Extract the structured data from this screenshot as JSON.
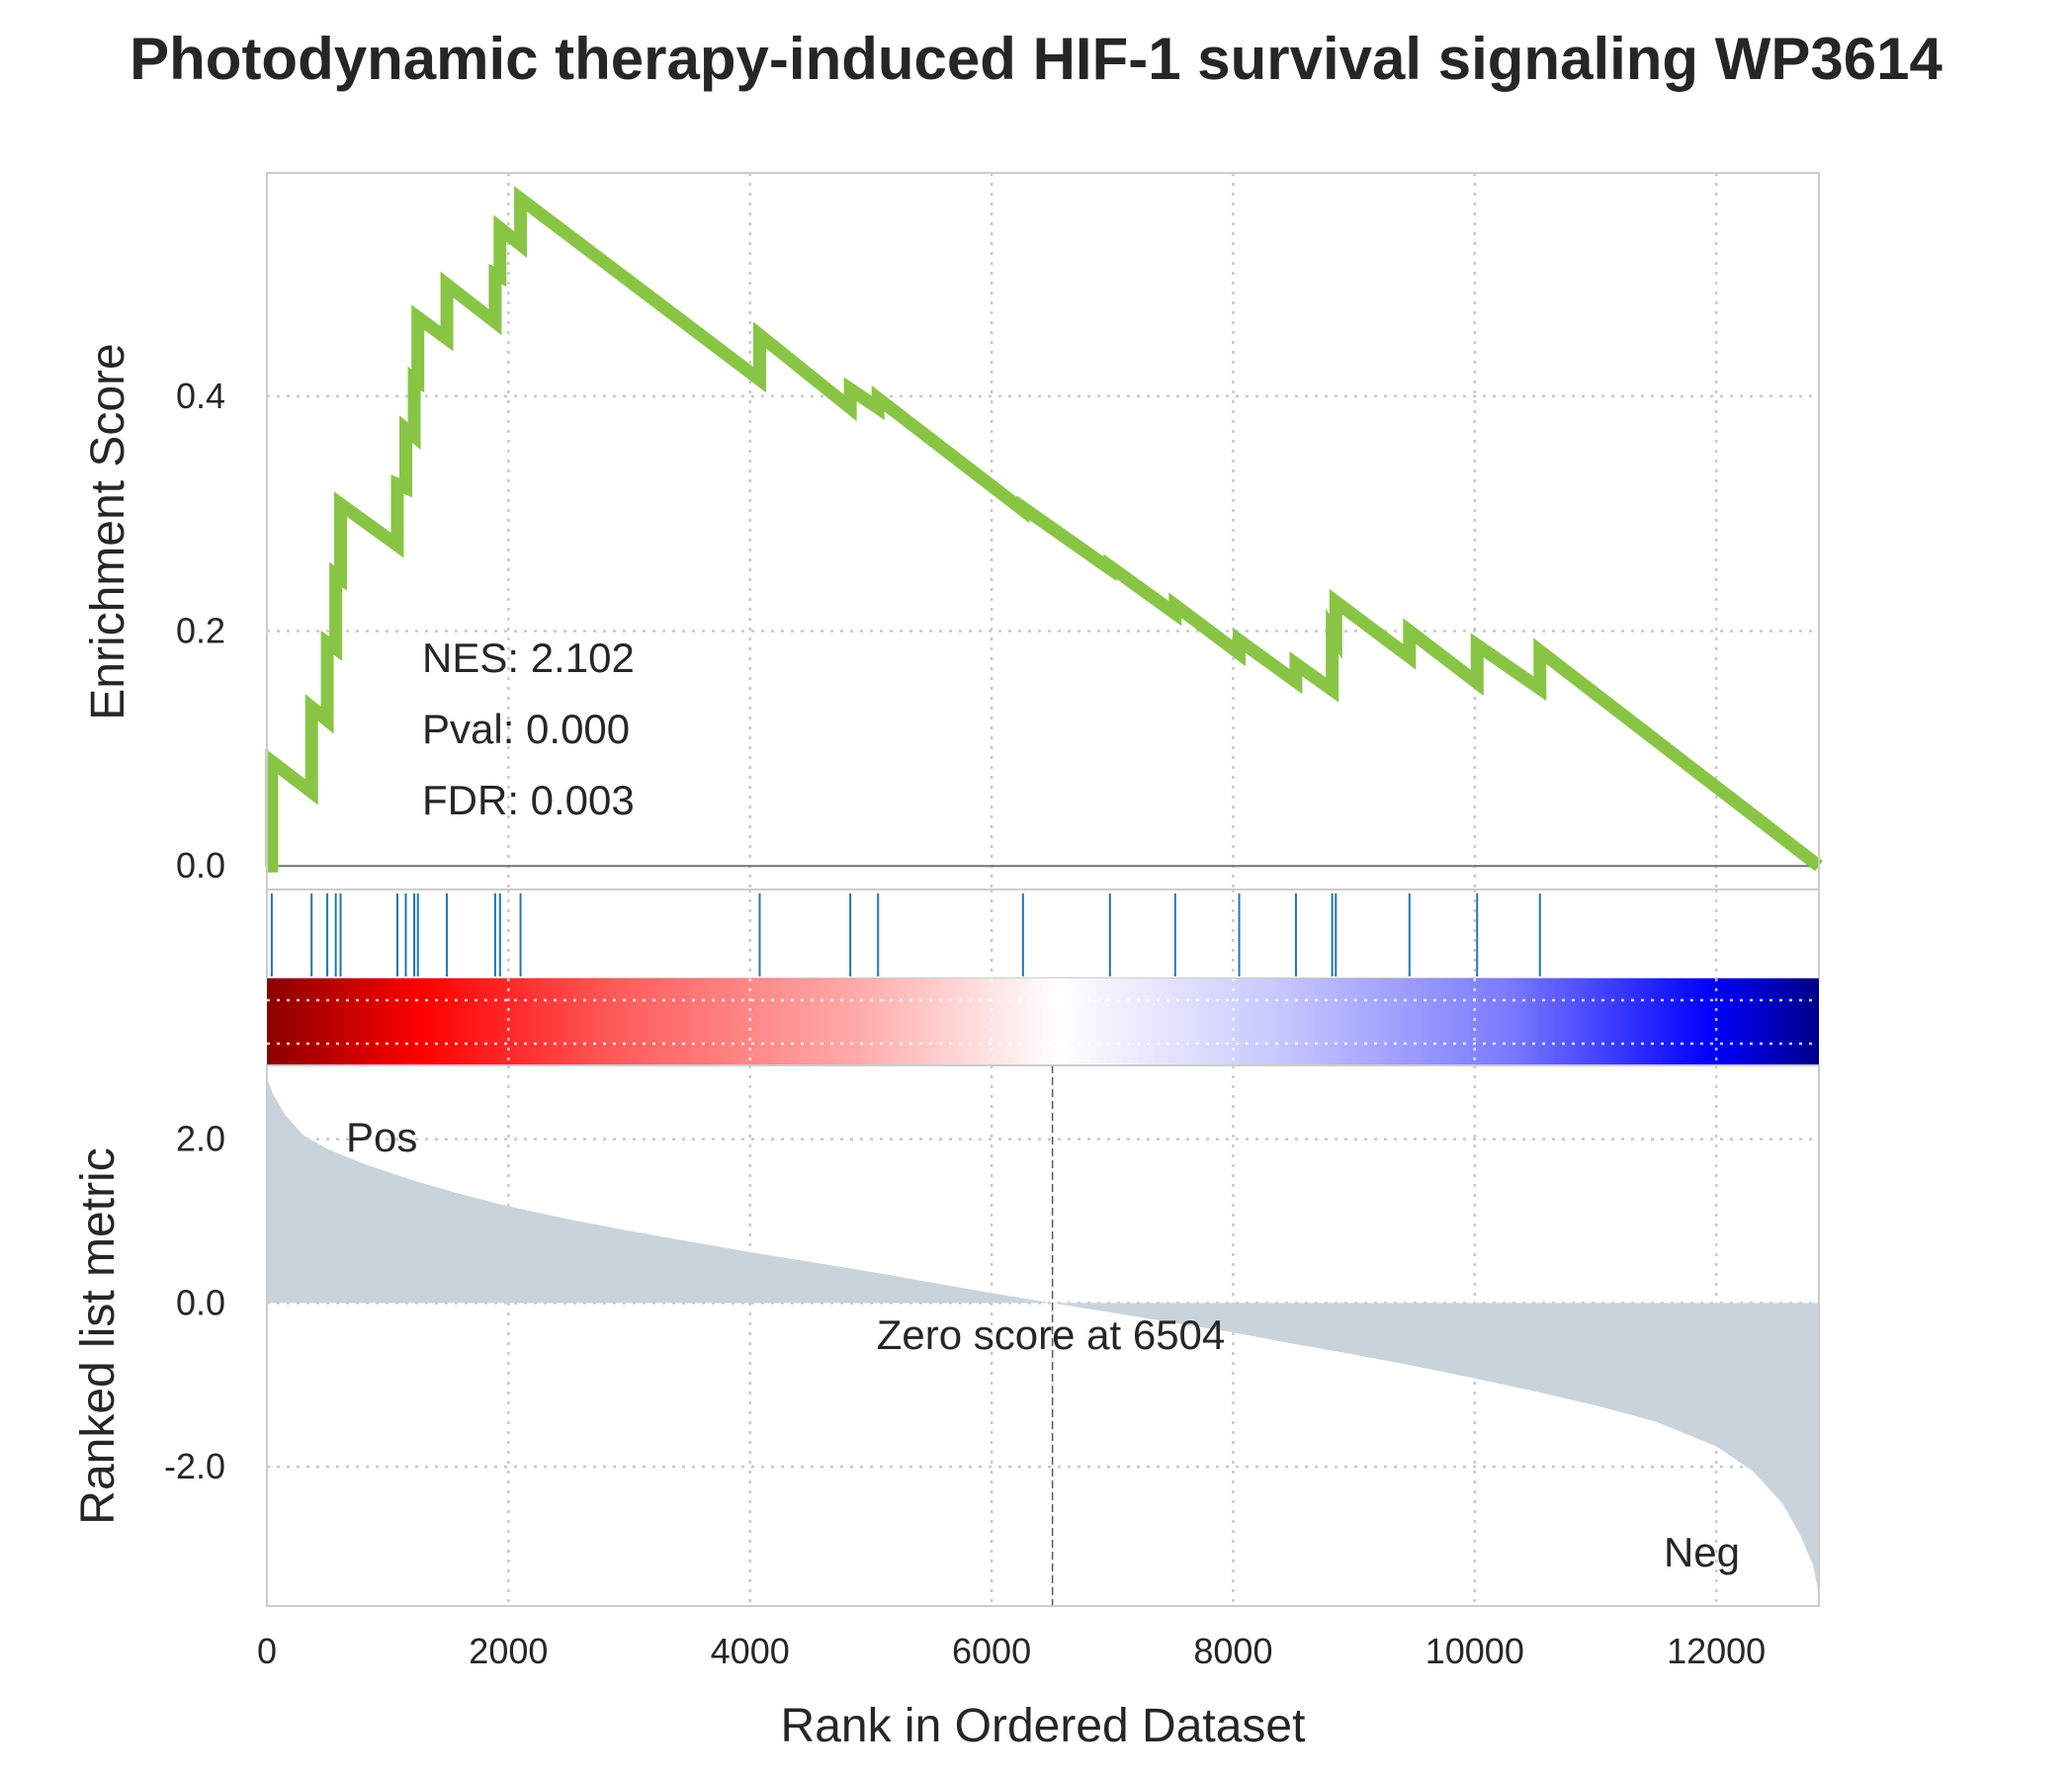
{
  "chart_data": {
    "type": "line",
    "title": "Photodynamic therapy-induced HIF-1 survival signaling WP3614",
    "xlabel": "Rank in Ordered Dataset",
    "xlim": [
      0,
      12850
    ],
    "x_ticks": [
      "0",
      "2000",
      "4000",
      "6000",
      "8000",
      "10000",
      "12000"
    ],
    "x_tick_values": [
      0,
      2000,
      4000,
      6000,
      8000,
      10000,
      12000
    ],
    "grid": true,
    "colors": {
      "es_line": "#88c544",
      "hit_line": "#1f77b4",
      "metric_fill": "#c9d3dc",
      "pos_label": "#ff0000",
      "neg_label": "#0000ff",
      "heat_high": "#8b0000",
      "heat_low": "#00008b"
    },
    "enrichment_panel": {
      "ylabel": "Enrichment Score",
      "ylim": [
        -0.02,
        0.59
      ],
      "y_ticks": [
        "0.0",
        "0.2",
        "0.4"
      ],
      "y_tick_values": [
        0.0,
        0.2,
        0.4
      ],
      "stats": [
        "NES: 2.102",
        "Pval: 0.000",
        "FDR: 0.003"
      ],
      "hits": [
        {
          "rank": 40,
          "es_before": 0.0,
          "es_after": 0.089
        },
        {
          "rank": 370,
          "es_before": 0.063,
          "es_after": 0.135
        },
        {
          "rank": 500,
          "es_before": 0.124,
          "es_after": 0.19
        },
        {
          "rank": 570,
          "es_before": 0.185,
          "es_after": 0.248
        },
        {
          "rank": 610,
          "es_before": 0.245,
          "es_after": 0.308
        },
        {
          "rank": 1080,
          "es_before": 0.273,
          "es_after": 0.325
        },
        {
          "rank": 1150,
          "es_before": 0.322,
          "es_after": 0.372
        },
        {
          "rank": 1220,
          "es_before": 0.366,
          "es_after": 0.415
        },
        {
          "rank": 1250,
          "es_before": 0.413,
          "es_after": 0.467
        },
        {
          "rank": 1490,
          "es_before": 0.449,
          "es_after": 0.495
        },
        {
          "rank": 1890,
          "es_before": 0.463,
          "es_after": 0.504
        },
        {
          "rank": 1930,
          "es_before": 0.502,
          "es_after": 0.543
        },
        {
          "rank": 2100,
          "es_before": 0.529,
          "es_after": 0.568
        },
        {
          "rank": 4080,
          "es_before": 0.414,
          "es_after": 0.452
        },
        {
          "rank": 4830,
          "es_before": 0.39,
          "es_after": 0.406
        },
        {
          "rank": 5060,
          "es_before": 0.39,
          "es_after": 0.398
        },
        {
          "rank": 6260,
          "es_before": 0.303,
          "es_after": 0.305
        },
        {
          "rank": 6980,
          "es_before": 0.253,
          "es_after": 0.255
        },
        {
          "rank": 7520,
          "es_before": 0.215,
          "es_after": 0.222
        },
        {
          "rank": 8050,
          "es_before": 0.181,
          "es_after": 0.192
        },
        {
          "rank": 8520,
          "es_before": 0.157,
          "es_after": 0.172
        },
        {
          "rank": 8820,
          "es_before": 0.15,
          "es_after": 0.2
        },
        {
          "rank": 8850,
          "es_before": 0.195,
          "es_after": 0.225
        },
        {
          "rank": 9460,
          "es_before": 0.178,
          "es_after": 0.2
        },
        {
          "rank": 10020,
          "es_before": 0.156,
          "es_after": 0.188
        },
        {
          "rank": 10540,
          "es_before": 0.151,
          "es_after": 0.183
        }
      ],
      "end": {
        "rank": 12850,
        "es": 0.0
      }
    },
    "ranked_metric_panel": {
      "ylabel": "Ranked list metric",
      "ylim": [
        -3.7,
        2.9
      ],
      "y_ticks": [
        "2.0",
        "0.0",
        "-2.0"
      ],
      "y_tick_values": [
        2.0,
        0.0,
        -2.0
      ],
      "pos_label": "Pos",
      "neg_label": "Neg",
      "zero_score_label": "Zero score at 6504",
      "zero_rank": 6504,
      "metric_curve": [
        {
          "rank": 0,
          "value": 2.75
        },
        {
          "rank": 50,
          "value": 2.55
        },
        {
          "rank": 150,
          "value": 2.3
        },
        {
          "rank": 300,
          "value": 2.05
        },
        {
          "rank": 500,
          "value": 1.88
        },
        {
          "rank": 800,
          "value": 1.7
        },
        {
          "rank": 1200,
          "value": 1.5
        },
        {
          "rank": 1600,
          "value": 1.33
        },
        {
          "rank": 2000,
          "value": 1.18
        },
        {
          "rank": 2500,
          "value": 1.02
        },
        {
          "rank": 3000,
          "value": 0.88
        },
        {
          "rank": 3500,
          "value": 0.75
        },
        {
          "rank": 4000,
          "value": 0.62
        },
        {
          "rank": 4500,
          "value": 0.5
        },
        {
          "rank": 5000,
          "value": 0.38
        },
        {
          "rank": 5500,
          "value": 0.25
        },
        {
          "rank": 6000,
          "value": 0.12
        },
        {
          "rank": 6504,
          "value": 0.0
        },
        {
          "rank": 7000,
          "value": -0.12
        },
        {
          "rank": 7500,
          "value": -0.24
        },
        {
          "rank": 8000,
          "value": -0.36
        },
        {
          "rank": 8500,
          "value": -0.5
        },
        {
          "rank": 9000,
          "value": -0.63
        },
        {
          "rank": 9500,
          "value": -0.77
        },
        {
          "rank": 10000,
          "value": -0.92
        },
        {
          "rank": 10500,
          "value": -1.08
        },
        {
          "rank": 11000,
          "value": -1.25
        },
        {
          "rank": 11500,
          "value": -1.45
        },
        {
          "rank": 12000,
          "value": -1.75
        },
        {
          "rank": 12300,
          "value": -2.05
        },
        {
          "rank": 12550,
          "value": -2.45
        },
        {
          "rank": 12700,
          "value": -2.85
        },
        {
          "rank": 12800,
          "value": -3.2
        },
        {
          "rank": 12850,
          "value": -3.55
        }
      ]
    }
  }
}
